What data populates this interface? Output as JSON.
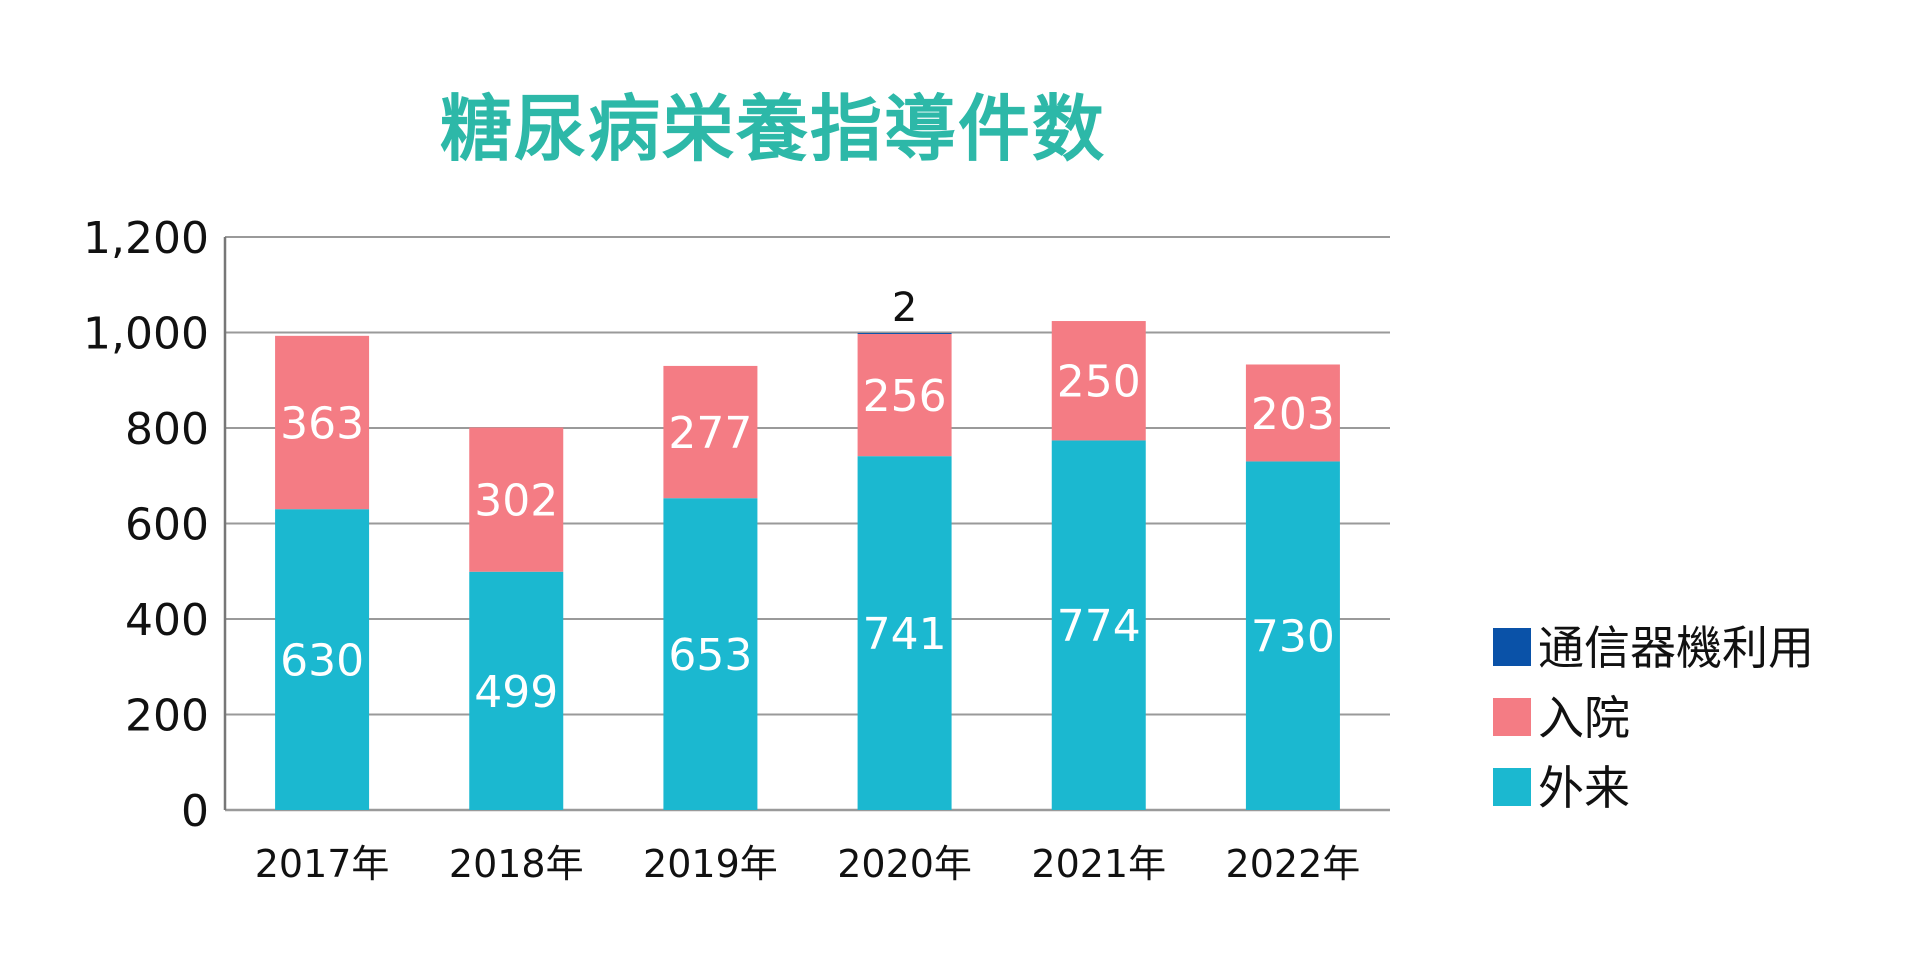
{
  "chart_data": {
    "type": "bar",
    "stacked": true,
    "title": "糖尿病栄養指導件数",
    "categories": [
      "2017年",
      "2018年",
      "2019年",
      "2020年",
      "2021年",
      "2022年"
    ],
    "series": [
      {
        "name": "外来",
        "color": "#1bb8d0",
        "values": [
          630,
          499,
          653,
          741,
          774,
          730
        ],
        "labels": [
          "630",
          "499",
          "653",
          "741",
          "774",
          "730"
        ]
      },
      {
        "name": "入院",
        "color": "#f47c84",
        "values": [
          363,
          302,
          277,
          256,
          250,
          203
        ],
        "labels": [
          "363",
          "302",
          "277",
          "256",
          "250",
          "203"
        ]
      },
      {
        "name": "通信器機利用",
        "color": "#0a52a8",
        "values": [
          0,
          0,
          0,
          2,
          0,
          0
        ],
        "labels": [
          "",
          "",
          "",
          "2",
          "",
          ""
        ]
      }
    ],
    "yticks": [
      "0",
      "200",
      "400",
      "600",
      "800",
      "1,000",
      "1,200"
    ],
    "ylim": [
      0,
      1200
    ],
    "grid": true,
    "legend": "right"
  }
}
